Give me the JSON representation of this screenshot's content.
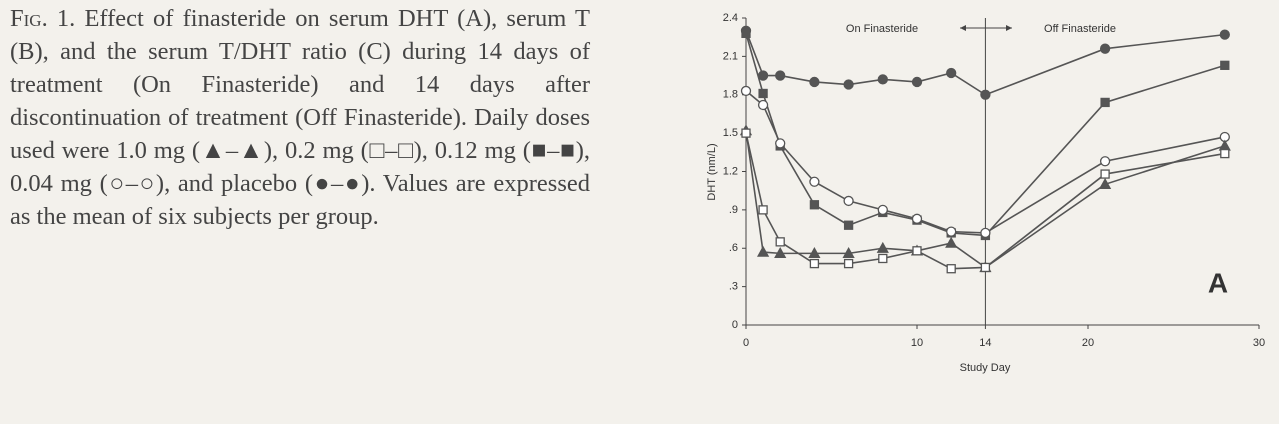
{
  "caption": {
    "label": "Fig. 1.",
    "text": "Effect of finasteride on serum DHT (A), serum T (B), and the serum T/DHT ratio (C) during 14 days of treatment (On Finasteride) and 14 days after discontinuation of treatment (Off Finasteride). Daily doses used were 1.0 mg (▲–▲), 0.2 mg (□–□), 0.12 mg (■–■), 0.04 mg (○–○), and placebo (●–●). Values are expressed as the mean of six subjects per group."
  },
  "chart_data": {
    "type": "line",
    "x_label": "Study Day",
    "y_label": "DHT (nm/L)",
    "annotations": {
      "on": "On Finasteride",
      "off": "Off Finasteride",
      "panel": "A"
    },
    "divider_x": 14,
    "x": [
      0,
      1,
      2,
      4,
      6,
      8,
      10,
      12,
      14,
      21,
      28
    ],
    "xlim": [
      0,
      30
    ],
    "xticks": [
      0,
      10,
      14,
      20,
      30
    ],
    "ylim": [
      0,
      2.4
    ],
    "yticks": [
      0,
      {
        "value": 0.3,
        "label": ".3"
      },
      {
        "value": 0.6,
        "label": ".6"
      },
      {
        "value": 0.9,
        "label": ".9"
      },
      1.2,
      1.5,
      1.8,
      2.1,
      2.4
    ],
    "series": [
      {
        "marker": "circle-filled",
        "color": "#555",
        "values": [
          2.3,
          1.95,
          1.95,
          1.9,
          1.88,
          1.92,
          1.9,
          1.97,
          1.8,
          2.16,
          2.27
        ]
      },
      {
        "marker": "square-filled",
        "color": "#555",
        "values": [
          2.28,
          1.81,
          1.4,
          0.94,
          0.78,
          0.88,
          0.82,
          0.72,
          0.7,
          1.74,
          2.03
        ]
      },
      {
        "marker": "circle-open",
        "color": "#555",
        "values": [
          1.83,
          1.72,
          1.42,
          1.12,
          0.97,
          0.9,
          0.83,
          0.73,
          0.72,
          1.28,
          1.47
        ]
      },
      {
        "marker": "triangle-filled",
        "color": "#555",
        "values": [
          1.52,
          0.57,
          0.56,
          0.56,
          0.56,
          0.6,
          0.58,
          0.64,
          0.45,
          1.1,
          1.4
        ]
      },
      {
        "marker": "square-open",
        "color": "#555",
        "values": [
          1.5,
          0.9,
          0.65,
          0.48,
          0.48,
          0.52,
          0.58,
          0.44,
          0.45,
          1.18,
          1.34
        ]
      }
    ]
  }
}
